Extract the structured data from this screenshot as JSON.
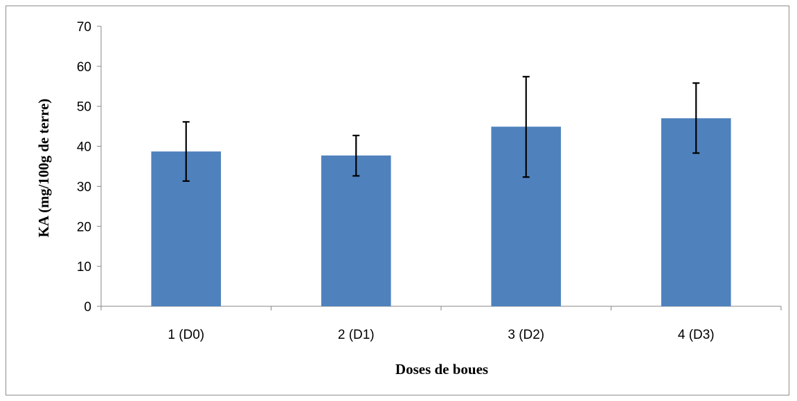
{
  "chart_data": {
    "type": "bar",
    "title": "",
    "xlabel": "Doses  de boues",
    "ylabel": "KA (mg/100g de terre)",
    "categories": [
      "1 (D0)",
      "2 (D1)",
      "3 (D2)",
      "4 (D3)"
    ],
    "values": [
      38.7,
      37.7,
      44.9,
      47.0
    ],
    "error_low": [
      31.3,
      32.6,
      32.3,
      38.3
    ],
    "error_high": [
      46.1,
      42.7,
      57.4,
      55.8
    ],
    "ylim": [
      0,
      70
    ],
    "yticks": [
      0,
      10,
      20,
      30,
      40,
      50,
      60,
      70
    ],
    "grid": false,
    "legend": "none",
    "bar_color": "#4f81bd",
    "error_bar_color": "#000000"
  }
}
